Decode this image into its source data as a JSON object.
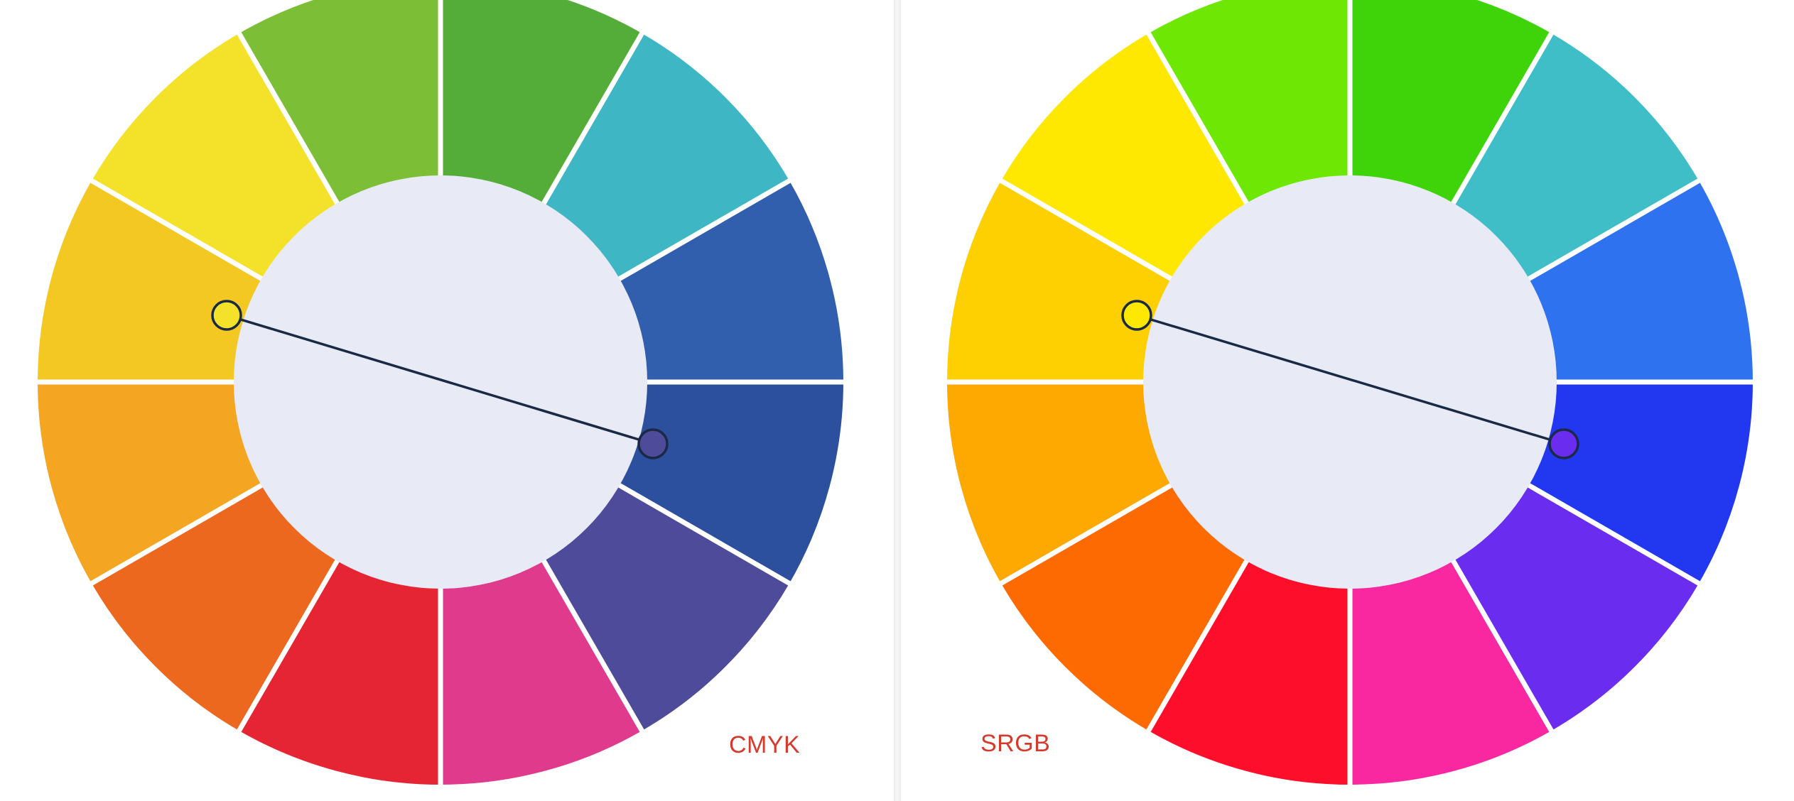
{
  "panels": [
    {
      "label": "CMYK",
      "colors": [
        "#54ad38",
        "#3eb6c3",
        "#315fae",
        "#2c4f9e",
        "#4e4b9b",
        "#df3a8c",
        "#e52534",
        "#ec681e",
        "#f4a521",
        "#f4c822",
        "#f3e12a",
        "#7cbf36"
      ]
    },
    {
      "label": "SRGB",
      "colors": [
        "#3fd40a",
        "#3fbec8",
        "#2e72f0",
        "#2237f0",
        "#6a2df0",
        "#fa28a0",
        "#fd0f2c",
        "#fe6a02",
        "#fea802",
        "#fed002",
        "#fee802",
        "#6ee705"
      ]
    }
  ],
  "colors": {
    "inner_disc": "#e8eaf5",
    "separator": "#ffffff",
    "connector": "#1a2a45",
    "marker_fill_left": "#f3e12a",
    "marker_fill_right": "#4e4b9b"
  }
}
